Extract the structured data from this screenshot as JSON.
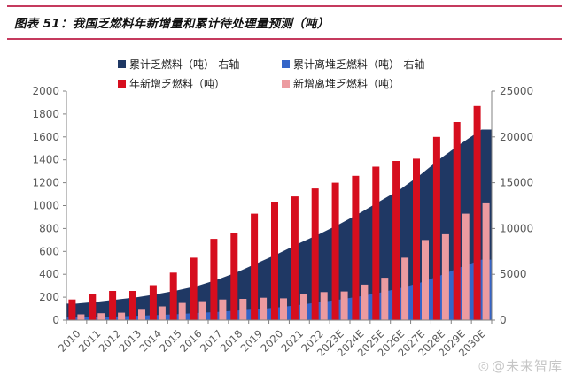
{
  "header": {
    "figure_title": "图表 51：我国乏燃料年新增量和累计待处理量预测（吨）",
    "rule_color": "#c53a5e"
  },
  "watermark": {
    "logo_glyph": "◎",
    "text": "@未来智库"
  },
  "chart_data": {
    "type": "combo-area-bar",
    "title": "我国乏燃料年新增量和累计待处理量预测（吨）",
    "categories": [
      "2010",
      "2011",
      "2012",
      "2013",
      "2014",
      "2015",
      "2016",
      "2017",
      "2018",
      "2019",
      "2020",
      "2021",
      "2022",
      "2023E",
      "2024E",
      "2025E",
      "2026E",
      "2027E",
      "2028E",
      "2029E",
      "2030E"
    ],
    "series": [
      {
        "name": "累计乏燃料（吨）-右轴",
        "type": "area",
        "axis": "right",
        "color": "#1f3864",
        "values": [
          1800,
          2000,
          2250,
          2500,
          2850,
          3250,
          3750,
          4450,
          5300,
          6300,
          7300,
          8400,
          9400,
          10500,
          11700,
          13000,
          14300,
          15900,
          17700,
          19300,
          20800
        ]
      },
      {
        "name": "累计离堆乏燃料（吨）-右轴",
        "type": "area",
        "axis": "right",
        "color": "#3465c8",
        "values": [
          280,
          340,
          400,
          470,
          560,
          660,
          780,
          900,
          1050,
          1200,
          1400,
          1650,
          1950,
          2250,
          2600,
          3000,
          3500,
          4100,
          4900,
          5800,
          6600
        ]
      },
      {
        "name": "年新增乏燃料（吨）",
        "type": "bar",
        "axis": "left",
        "color": "#d60e1e",
        "values": [
          180,
          225,
          255,
          255,
          305,
          415,
          545,
          710,
          760,
          930,
          1030,
          1080,
          1150,
          1200,
          1260,
          1340,
          1390,
          1410,
          1600,
          1730,
          1870
        ]
      },
      {
        "name": "新增离堆乏燃料（吨）",
        "type": "bar",
        "axis": "left",
        "color": "#ec9ba0",
        "values": [
          50,
          60,
          65,
          90,
          120,
          150,
          165,
          180,
          185,
          195,
          190,
          225,
          245,
          250,
          310,
          370,
          545,
          700,
          750,
          930,
          1020
        ]
      }
    ],
    "left_axis": {
      "min": 0,
      "max": 2000,
      "step": 200
    },
    "right_axis": {
      "min": 0,
      "max": 25000,
      "step": 5000
    },
    "legend_position": "top",
    "grid": false,
    "tick_label_color": "#595959",
    "axis_line_color": "#808080"
  }
}
